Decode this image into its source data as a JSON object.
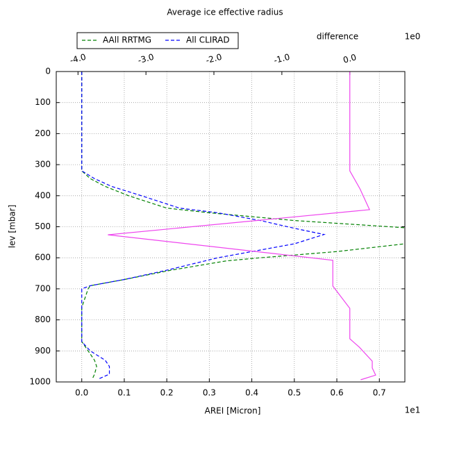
{
  "chart_data": {
    "type": "line",
    "title": "Average ice effective radius",
    "xlabel": "AREI [Micron]",
    "ylabel": "lev [mbar]",
    "x2label": "difference",
    "x_offset": "1e1",
    "x2_offset": "1e0",
    "xlim": [
      -0.06,
      0.76
    ],
    "xticks": [
      {
        "value": 0,
        "label": "0.0"
      },
      0.1,
      0.2,
      0.3,
      0.4,
      0.5,
      0.6,
      0.7
    ],
    "x2lim": [
      -4.32,
      0.81
    ],
    "x2ticks": [
      {
        "value": -4,
        "label": "-4.0"
      },
      {
        "value": -3,
        "label": "-3.0"
      },
      {
        "value": -2,
        "label": "-2.0"
      },
      {
        "value": -1,
        "label": "-1.0"
      },
      {
        "value": 0,
        "label": "0.0"
      }
    ],
    "ylim": [
      1000,
      0
    ],
    "yticks": [
      0,
      100,
      200,
      300,
      400,
      500,
      600,
      700,
      800,
      900,
      1000
    ],
    "grid": true,
    "legend": "upper left",
    "series": [
      {
        "name": "AAll RRTMG",
        "color": "#008000",
        "dash": true,
        "lev": [
          0,
          320,
          345,
          370,
          400,
          440,
          455,
          480,
          505,
          525,
          555,
          580,
          600,
          610,
          640,
          670,
          690,
          700,
          760,
          870,
          900,
          930,
          950,
          975,
          990
        ],
        "values": [
          0,
          0,
          0.02,
          0.055,
          0.11,
          0.2,
          0.3,
          0.5,
          0.78,
          0.8,
          0.76,
          0.6,
          0.42,
          0.34,
          0.21,
          0.1,
          0.02,
          0.015,
          0,
          0,
          0.015,
          0.03,
          0.035,
          0.03,
          0.025
        ]
      },
      {
        "name": "All CLIRAD",
        "color": "#0000ff",
        "dash": true,
        "lev": [
          0,
          320,
          345,
          370,
          400,
          440,
          455,
          480,
          505,
          525,
          555,
          580,
          600,
          610,
          640,
          670,
          690,
          700,
          760,
          870,
          900,
          930,
          950,
          975,
          990
        ],
        "values": [
          0,
          0,
          0.03,
          0.07,
          0.14,
          0.23,
          0.32,
          0.42,
          0.5,
          0.57,
          0.5,
          0.4,
          0.32,
          0.29,
          0.2,
          0.1,
          0.02,
          0,
          0,
          0,
          0.02,
          0.055,
          0.065,
          0.065,
          0.04
        ]
      },
      {
        "color": "#ee44ee",
        "dash": false,
        "axis": "x2",
        "lev": [
          0,
          320,
          378,
          445,
          526,
          608,
          691,
          763,
          861,
          888,
          933,
          955,
          978,
          993
        ],
        "values": [
          0,
          0,
          0.15,
          0.29,
          -3.56,
          -0.25,
          -0.25,
          0,
          0,
          0.14,
          0.33,
          0.33,
          0.38,
          0.16
        ]
      }
    ]
  }
}
